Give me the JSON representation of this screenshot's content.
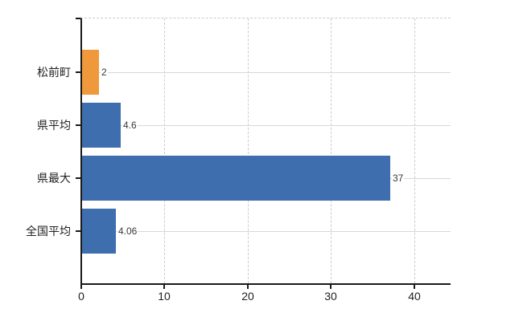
{
  "chart_data": {
    "type": "bar",
    "orientation": "horizontal",
    "title": "",
    "xlabel": "",
    "ylabel": "",
    "categories": [
      "松前町",
      "県平均",
      "県最大",
      "全国平均"
    ],
    "values": [
      2,
      4.6,
      37,
      4.06
    ],
    "value_labels": [
      "2",
      "4.6",
      "37",
      "4.06"
    ],
    "bar_colors": [
      "#f0983c",
      "#3e6eae",
      "#3e6eae",
      "#3e6eae"
    ],
    "xticks": [
      0,
      10,
      20,
      30,
      40
    ],
    "xlim": [
      0,
      44.3
    ],
    "grid": "on",
    "legend": "none"
  },
  "colors": {
    "bar_orange": "#f0983c",
    "bar_blue": "#3e6eae",
    "axis": "#1a1a1a",
    "grid_vertical": "#cfc9cf",
    "grid_horizontal": "#d5d9d5",
    "text": "#222222",
    "background": "#ffffff"
  }
}
